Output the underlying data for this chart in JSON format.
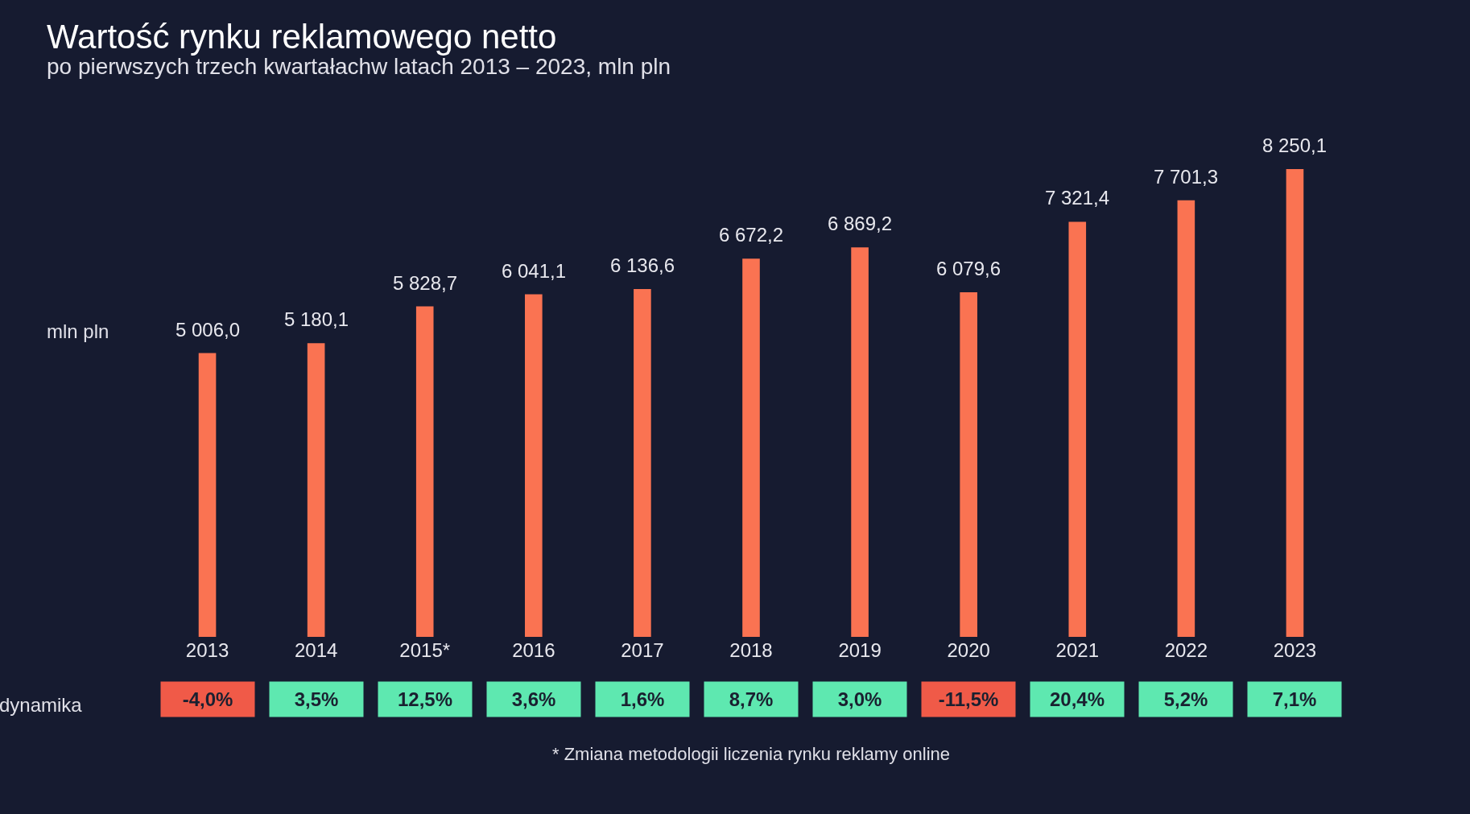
{
  "chart_data": {
    "type": "bar",
    "title": "Wartość rynku reklamowego netto",
    "subtitle": "po pierwszych trzech kwartałachw latach 2013 – 2023, mln pln",
    "ylabel": "mln pln",
    "categories": [
      "2013",
      "2014",
      "2015*",
      "2016",
      "2017",
      "2018",
      "2019",
      "2020",
      "2021",
      "2022",
      "2023"
    ],
    "values": [
      5006.0,
      5180.1,
      5828.7,
      6041.1,
      6136.6,
      6672.2,
      6869.2,
      6079.6,
      7321.4,
      7701.3,
      8250.1
    ],
    "value_labels": [
      "5 006,0",
      "5 180,1",
      "5 828,7",
      "6 041,1",
      "6 136,6",
      "6 672,2",
      "6 869,2",
      "6 079,6",
      "7 321,4",
      "7 701,3",
      "8 250,1"
    ],
    "color": "#fa7352",
    "annotations": [
      "dynamika",
      "-4,0%",
      "3,5%",
      "12,5%",
      "3,6%",
      "1,6%",
      "8,7%",
      "3,0%",
      "-11,5%",
      "20,4%",
      "5,2%",
      "7,1%",
      "* Zmiana metodologii liczenia rynku reklamy online"
    ],
    "grid": false,
    "legend": false
  }
}
